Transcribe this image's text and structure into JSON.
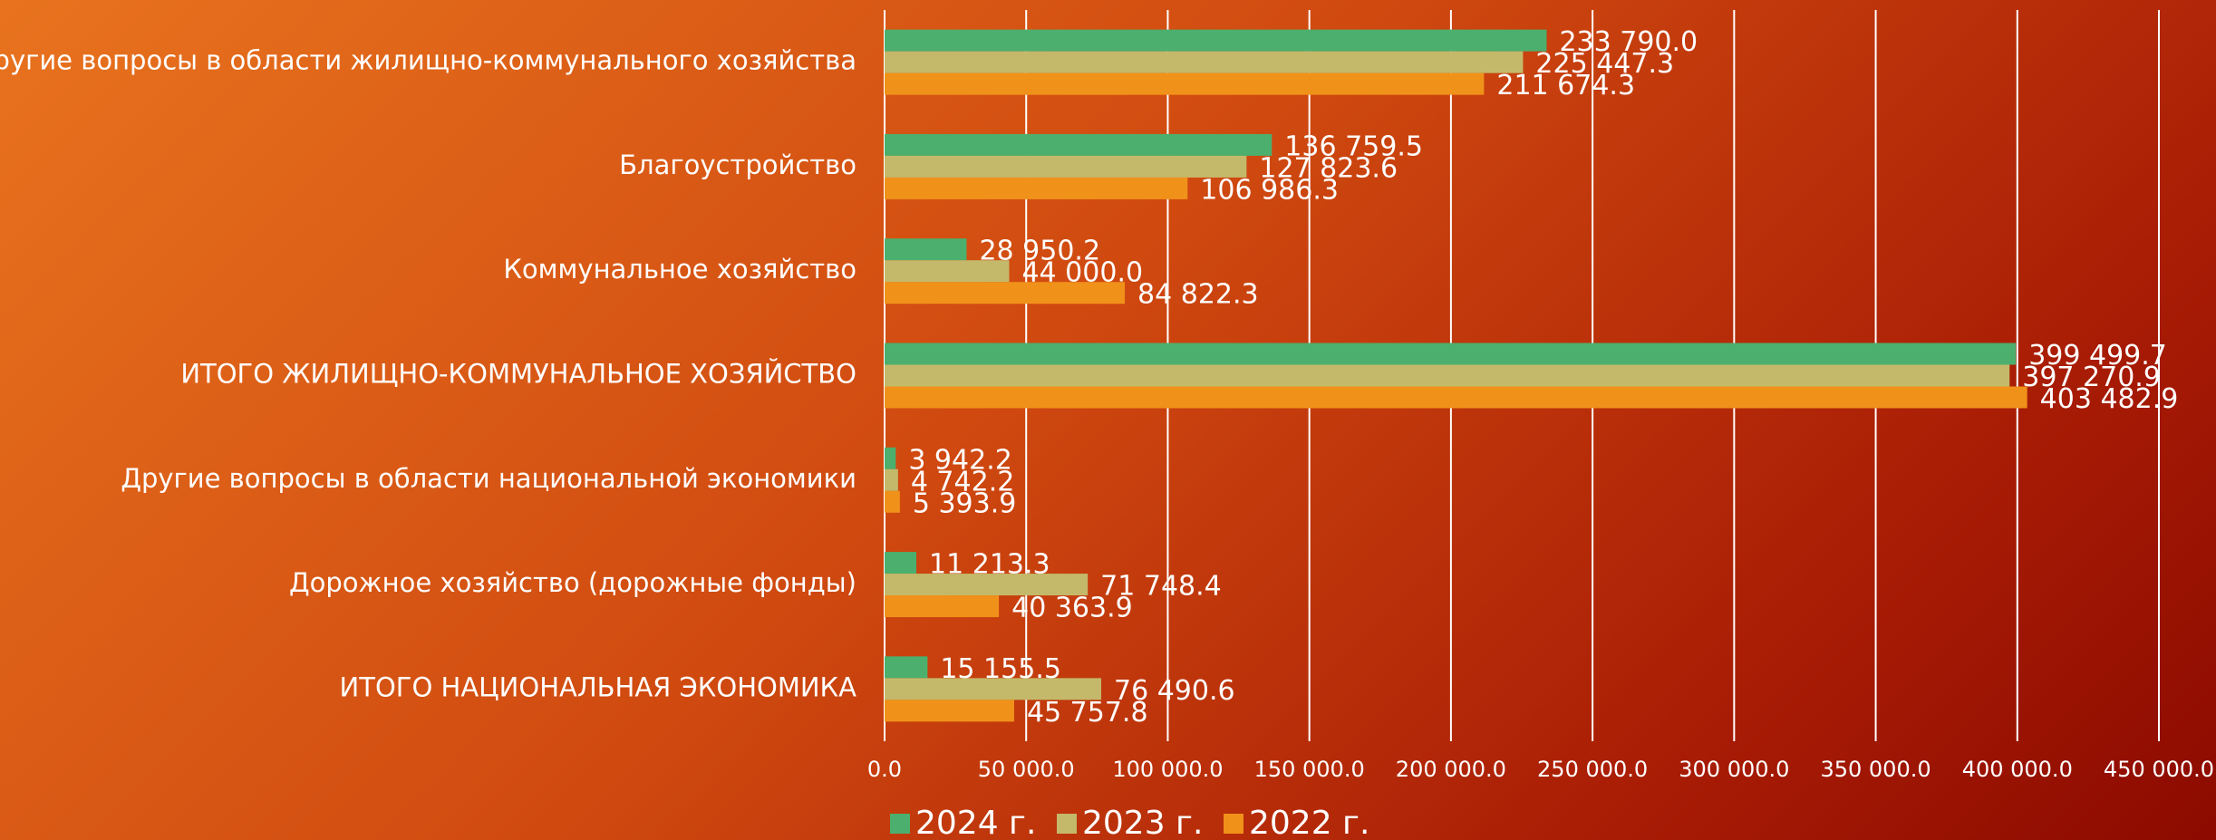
{
  "chart_data": {
    "type": "hbar",
    "categories": [
      "Другие вопросы в области жилищно-коммунального хозяйства",
      "Благоустройство",
      "Коммунальное хозяйство",
      "ИТОГО ЖИЛИЩНО-КОММУНАЛЬНОЕ ХОЗЯЙСТВО",
      "Другие вопросы в области национальной экономики",
      "Дорожное хозяйство (дорожные фонды)",
      "ИТОГО НАЦИОНАЛЬНАЯ ЭКОНОМИКА"
    ],
    "series": [
      {
        "name": "2024 г.",
        "color": "#4caf6e",
        "values": [
          233790.0,
          136759.5,
          28950.2,
          399499.7,
          3942.2,
          11213.3,
          15155.5
        ],
        "value_labels": [
          "233 790.0",
          "136 759.5",
          "28 950.2",
          "399 499.7",
          "3 942.2",
          "11 213.3",
          "15 155.5"
        ]
      },
      {
        "name": "2023 г.",
        "color": "#c4b96a",
        "values": [
          225447.3,
          127823.6,
          44000.0,
          397270.9,
          4742.2,
          71748.4,
          76490.6
        ],
        "value_labels": [
          "225 447.3",
          "127 823.6",
          "44 000.0",
          "397 270.9",
          "4 742.2",
          "71 748.4",
          "76 490.6"
        ]
      },
      {
        "name": "2022 г.",
        "color": "#f0921a",
        "values": [
          211674.3,
          106986.3,
          84822.3,
          403482.9,
          5393.9,
          40363.9,
          45757.8
        ],
        "value_labels": [
          "211 674.3",
          "106 986.3",
          "84 822.3",
          "403 482.9",
          "5 393.9",
          "40 363.9",
          "45 757.8"
        ]
      }
    ],
    "xlim": [
      0,
      450000
    ],
    "xticks": [
      {
        "value": 0,
        "label": "0.0"
      },
      {
        "value": 50000,
        "label": "50 000.0"
      },
      {
        "value": 100000,
        "label": "100 000.0"
      },
      {
        "value": 150000,
        "label": "150 000.0"
      },
      {
        "value": 200000,
        "label": "200 000.0"
      },
      {
        "value": 250000,
        "label": "250 000.0"
      },
      {
        "value": 300000,
        "label": "300 000.0"
      },
      {
        "value": 350000,
        "label": "350 000.0"
      },
      {
        "value": 400000,
        "label": "400 000.0"
      },
      {
        "value": 450000,
        "label": "450 000.0"
      }
    ],
    "grid": true,
    "legend": "bottom"
  }
}
